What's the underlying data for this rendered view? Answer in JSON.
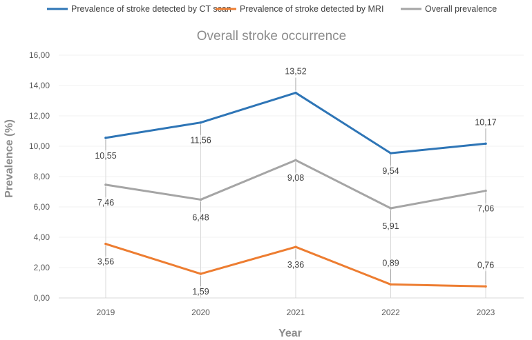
{
  "chart_data": {
    "type": "line",
    "title": "Overall stroke occurrence",
    "xlabel": "Year",
    "ylabel": "Prevalence (%)",
    "categories": [
      "2019",
      "2020",
      "2021",
      "2022",
      "2023"
    ],
    "ylim": [
      0,
      16
    ],
    "y_ticks": [
      "0,00",
      "2,00",
      "4,00",
      "6,00",
      "8,00",
      "10,00",
      "12,00",
      "14,00",
      "16,00"
    ],
    "legend_position": "top",
    "series": [
      {
        "name": "Prevalence of stroke detected by CT scan",
        "color": "#2e75b6",
        "values": [
          10.55,
          11.56,
          13.52,
          9.54,
          10.17
        ],
        "labels": [
          "10,55",
          "11,56",
          "13,52",
          "9,54",
          "10,17"
        ],
        "label_side": [
          "below",
          "below",
          "above",
          "below",
          "above"
        ]
      },
      {
        "name": "Prevalence of stroke detected by MRI",
        "color": "#ed7d31",
        "values": [
          3.56,
          1.59,
          3.36,
          0.89,
          0.76
        ],
        "labels": [
          "3,56",
          "1,59",
          "3,36",
          "0,89",
          "0,76"
        ],
        "label_side": [
          "below",
          "below",
          "below",
          "above",
          "above"
        ]
      },
      {
        "name": "Overall prevalence",
        "color": "#a5a5a5",
        "values": [
          7.46,
          6.48,
          9.08,
          5.91,
          7.06
        ],
        "labels": [
          "7,46",
          "6,48",
          "9,08",
          "5,91",
          "7,06"
        ],
        "label_side": [
          "below",
          "below",
          "below",
          "below",
          "below"
        ]
      }
    ]
  }
}
